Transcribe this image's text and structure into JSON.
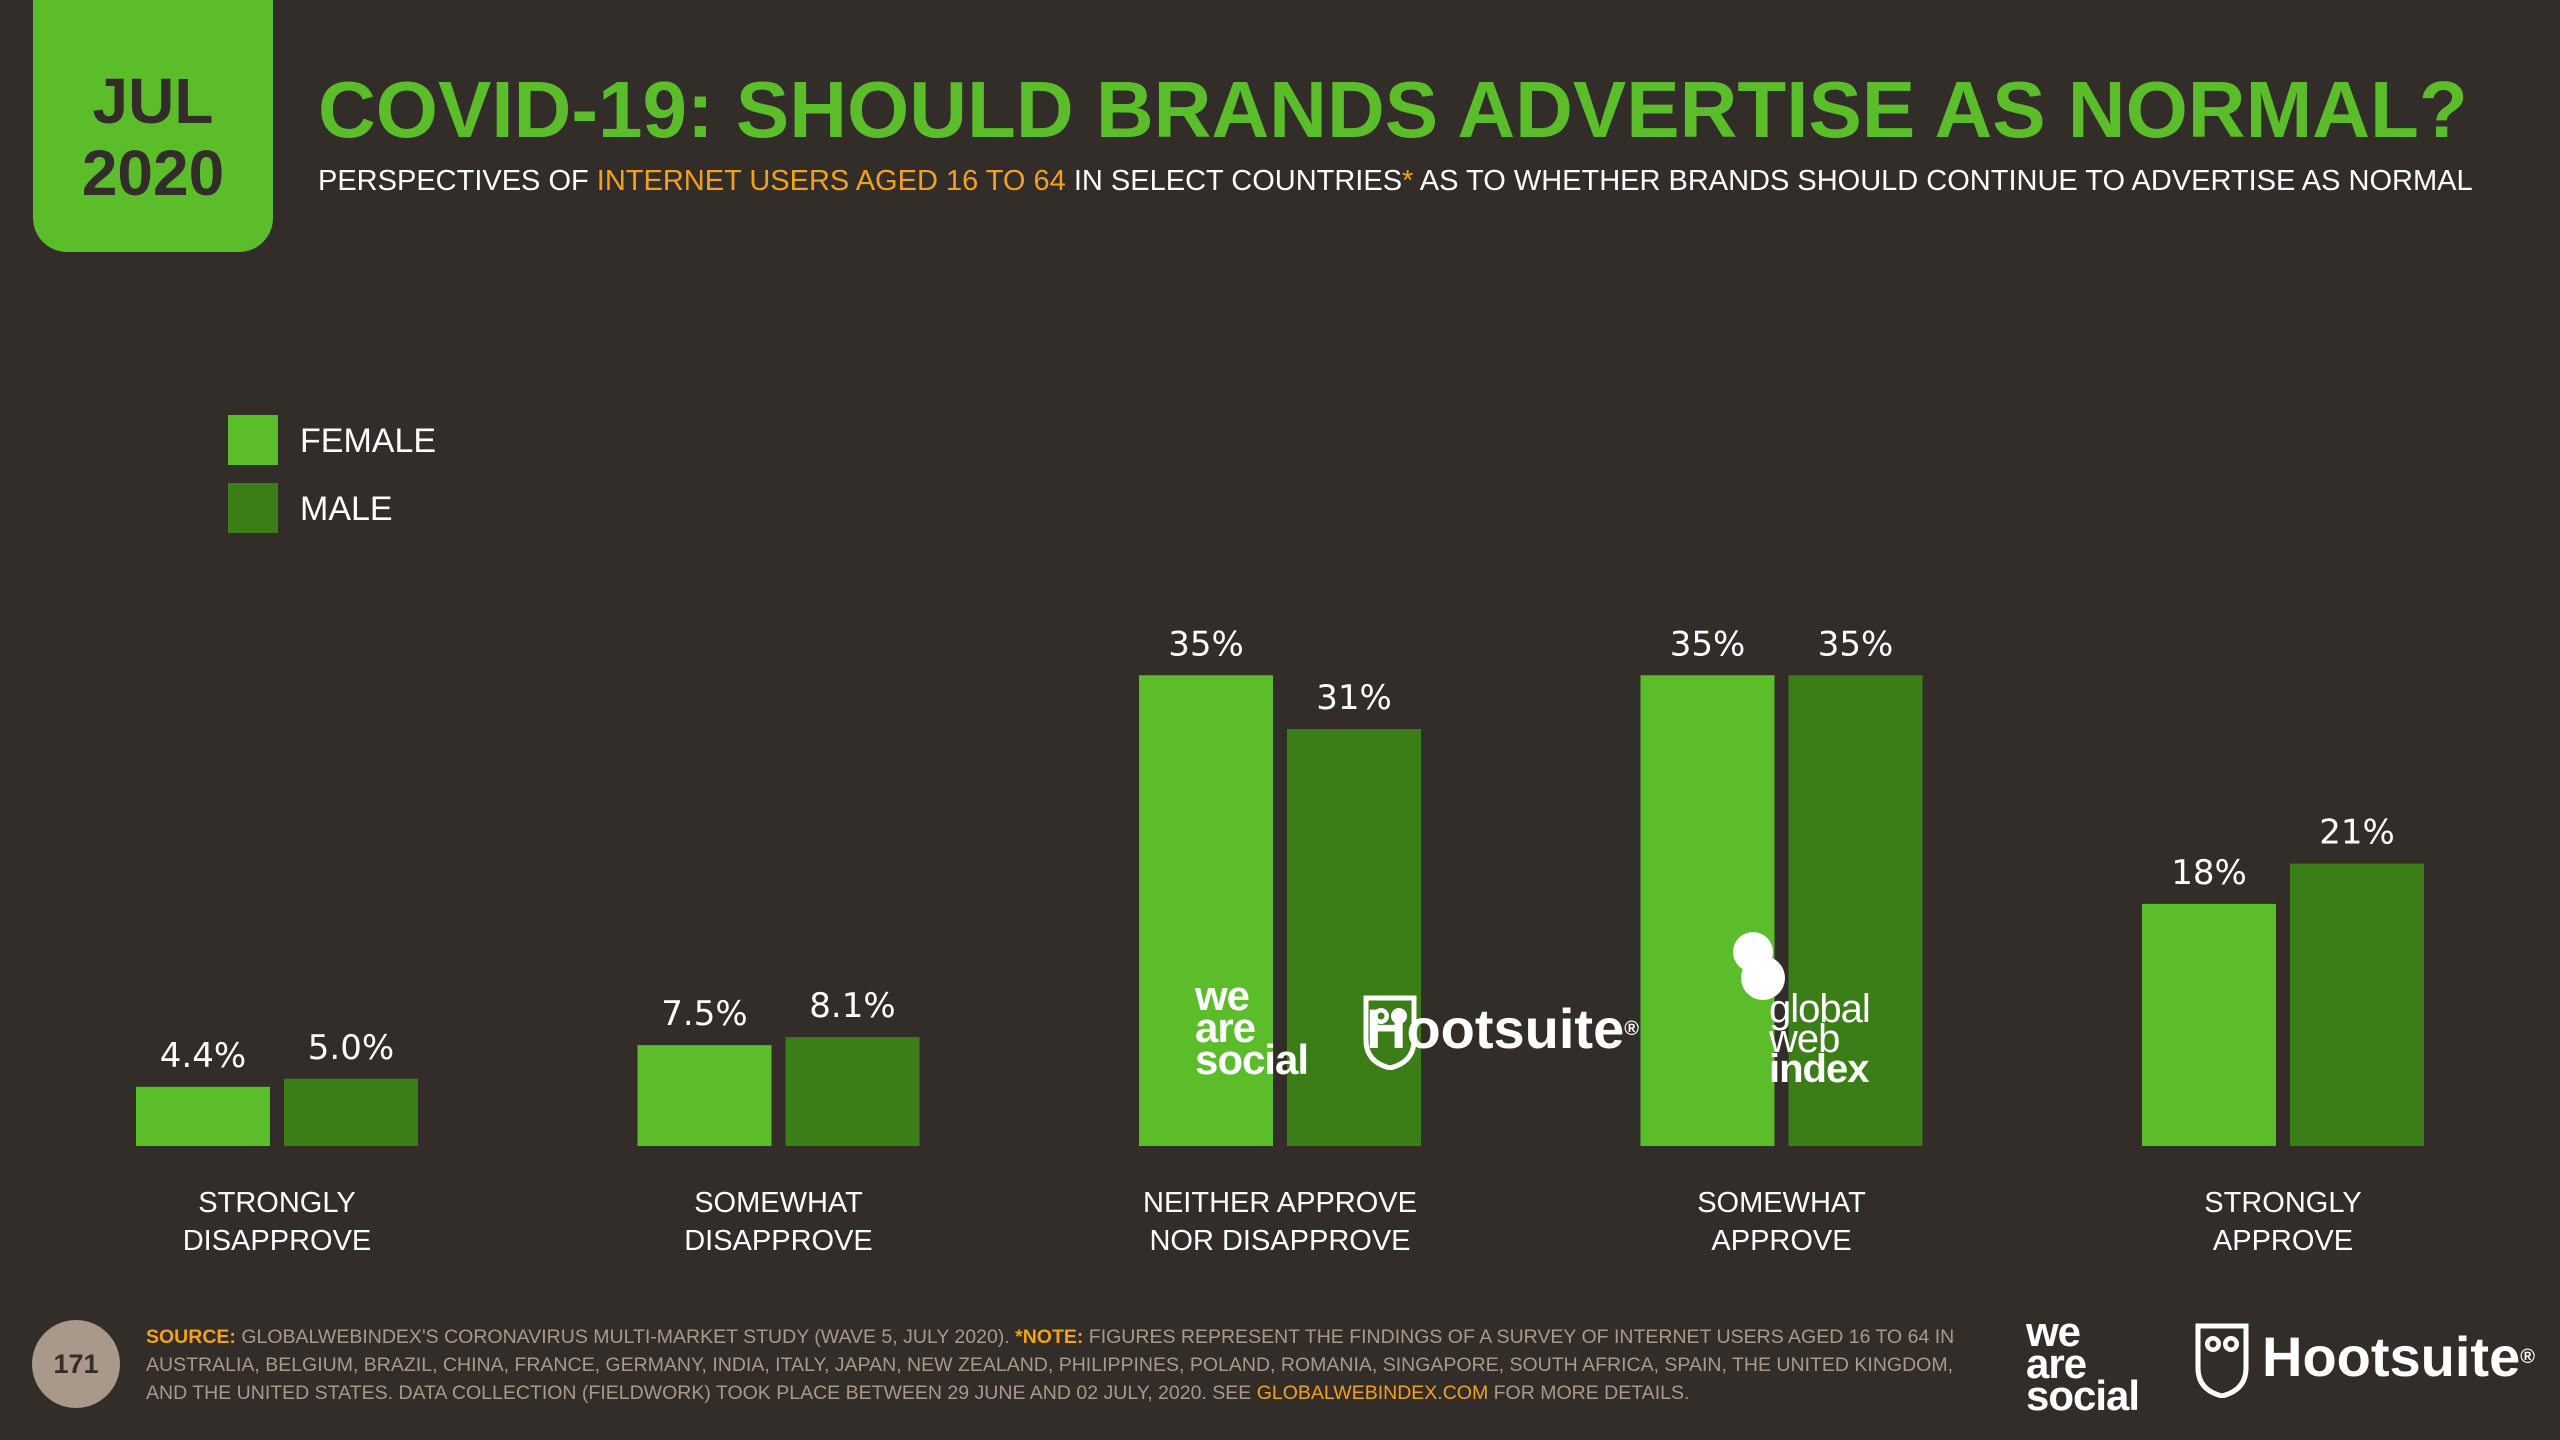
{
  "badge": {
    "month": "JUL",
    "year": "2020"
  },
  "header": {
    "title": "COVID-19: SHOULD BRANDS ADVERTISE AS NORMAL?",
    "subtitle_pre": "PERSPECTIVES OF ",
    "subtitle_highlight": "INTERNET USERS AGED 16 TO 64",
    "subtitle_mid": " IN SELECT COUNTRIES",
    "subtitle_star": "*",
    "subtitle_post": " AS TO WHETHER BRANDS SHOULD CONTINUE TO ADVERTISE AS NORMAL"
  },
  "colors": {
    "female": "#5bbd2a",
    "male": "#3b7d17",
    "background": "#332d2a",
    "accent": "#f4a11a"
  },
  "chart_data": {
    "type": "bar",
    "categories": [
      [
        "STRONGLY",
        "DISAPPROVE"
      ],
      [
        "SOMEWHAT",
        "DISAPPROVE"
      ],
      [
        "NEITHER APPROVE",
        "NOR DISAPPROVE"
      ],
      [
        "SOMEWHAT",
        "APPROVE"
      ],
      [
        "STRONGLY",
        "APPROVE"
      ]
    ],
    "series": [
      {
        "name": "FEMALE",
        "values": [
          4.4,
          7.5,
          35,
          35,
          18
        ],
        "labels": [
          "4.4%",
          "7.5%",
          "35%",
          "35%",
          "18%"
        ]
      },
      {
        "name": "MALE",
        "values": [
          5.0,
          8.1,
          31,
          35,
          21
        ],
        "labels": [
          "5.0%",
          "8.1%",
          "31%",
          "35%",
          "21%"
        ]
      }
    ],
    "legend": "top-left",
    "grid": false
  },
  "footer": {
    "page": "171",
    "source_label": "SOURCE:",
    "source_text": " GLOBALWEBINDEX'S CORONAVIRUS MULTI-MARKET STUDY (WAVE 5, JULY 2020). ",
    "note_label": "*NOTE:",
    "note_text": " FIGURES REPRESENT THE FINDINGS OF A SURVEY OF INTERNET USERS AGED 16 TO 64 IN AUSTRALIA, BELGIUM, BRAZIL, CHINA, FRANCE, GERMANY, INDIA, ITALY, JAPAN, NEW ZEALAND, PHILIPPINES, POLAND, ROMANIA, SINGAPORE, SOUTH AFRICA, SPAIN, THE UNITED KINGDOM, AND THE UNITED STATES. DATA COLLECTION (FIELDWORK) TOOK PLACE BETWEEN 29 JUNE AND 02 JULY, 2020. SEE ",
    "link_text": "GLOBALWEBINDEX.COM",
    "end_text": " FOR MORE DETAILS."
  },
  "logos": {
    "we_are_social": [
      "we",
      "are",
      "social"
    ],
    "hootsuite": "Hootsuite",
    "registered": "®",
    "gwi": [
      "global",
      "web",
      "index"
    ]
  }
}
